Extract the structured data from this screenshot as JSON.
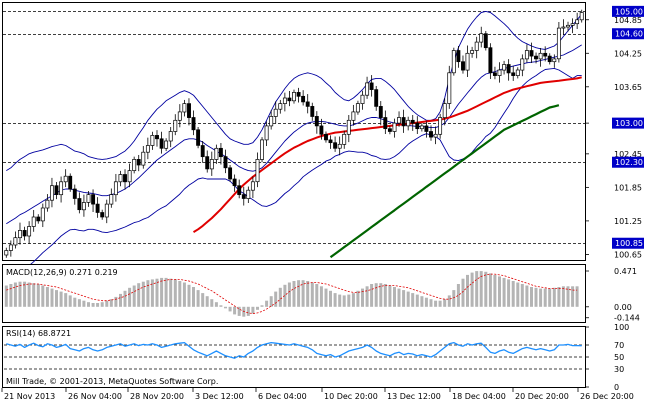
{
  "chart_data": [
    {
      "type": "candlestick",
      "instrument_note": "",
      "y_ticks": [
        "104.85",
        "104.25",
        "103.65",
        "103.00",
        "102.45",
        "101.85",
        "101.25",
        "100.65"
      ],
      "y_tick_values": [
        104.85,
        104.25,
        103.65,
        103.0,
        102.45,
        101.85,
        101.25,
        100.65
      ],
      "ylim": [
        100.55,
        105.15
      ],
      "levels": [
        {
          "label": "105.00",
          "value": 105.0,
          "highlight": true
        },
        {
          "label": "104.60",
          "value": 104.6,
          "highlight": true
        },
        {
          "label": "103.00",
          "value": 103.0,
          "highlight": true
        },
        {
          "label": "102.30",
          "value": 102.3,
          "highlight": true
        },
        {
          "label": "100.85",
          "value": 100.85,
          "highlight": true
        }
      ],
      "x_labels": [
        "21 Nov 2013",
        "26 Nov 04:00",
        "28 Nov 20:00",
        "3 Dec 12:00",
        "6 Dec 04:00",
        "10 Dec 20:00",
        "13 Dec 12:00",
        "18 Dec 04:00",
        "20 Dec 20:00",
        "26 Dec 20:00"
      ],
      "close": [
        100.72,
        100.82,
        100.95,
        101.08,
        100.98,
        101.15,
        101.32,
        101.25,
        101.48,
        101.62,
        101.88,
        101.72,
        101.95,
        102.05,
        101.82,
        101.65,
        101.45,
        101.58,
        101.72,
        101.55,
        101.4,
        101.32,
        101.55,
        101.72,
        101.95,
        102.08,
        101.95,
        102.15,
        102.35,
        102.25,
        102.48,
        102.6,
        102.78,
        102.72,
        102.55,
        102.68,
        102.85,
        103.05,
        103.2,
        103.35,
        103.1,
        102.88,
        102.6,
        102.4,
        102.18,
        102.35,
        102.55,
        102.4,
        102.2,
        102.0,
        101.88,
        101.72,
        101.65,
        101.8,
        101.95,
        102.35,
        102.7,
        102.95,
        103.12,
        103.25,
        103.35,
        103.45,
        103.4,
        103.55,
        103.48,
        103.38,
        103.3,
        103.12,
        102.95,
        102.8,
        102.7,
        102.65,
        102.55,
        102.62,
        102.8,
        103.05,
        103.2,
        103.35,
        103.5,
        103.72,
        103.6,
        103.3,
        103.1,
        102.9,
        102.85,
        103.0,
        103.1,
        102.95,
        103.05,
        103.0,
        102.9,
        102.95,
        102.85,
        102.75,
        102.8,
        103.1,
        103.35,
        103.9,
        104.3,
        104.1,
        103.95,
        104.25,
        104.3,
        104.45,
        104.6,
        104.35,
        103.9,
        103.85,
        103.95,
        104.05,
        103.9,
        103.85,
        103.95,
        104.15,
        104.3,
        104.2,
        104.15,
        104.25,
        104.2,
        104.1,
        104.15,
        104.7,
        104.72,
        104.75,
        104.78,
        104.85,
        104.98
      ],
      "bb_upper": [
        102.15,
        102.2,
        102.28,
        102.35,
        102.4,
        102.45,
        102.48,
        102.5,
        102.52,
        102.55,
        102.58,
        102.6,
        102.62,
        102.6,
        102.55,
        102.5,
        102.48,
        102.45,
        102.4,
        102.38,
        102.36,
        102.35,
        102.36,
        102.38,
        102.4,
        102.45,
        102.5,
        102.58,
        102.68,
        102.8,
        102.92,
        103.05,
        103.15,
        103.25,
        103.32,
        103.4,
        103.45,
        103.5,
        103.55,
        103.58,
        103.55,
        103.5,
        103.4,
        103.3,
        103.2,
        103.1,
        103.0,
        102.9,
        102.8,
        102.72,
        102.68,
        102.65,
        102.62,
        102.62,
        102.65,
        102.75,
        102.88,
        103.05,
        103.22,
        103.38,
        103.5,
        103.62,
        103.72,
        103.8,
        103.85,
        103.88,
        103.9,
        103.88,
        103.85,
        103.8,
        103.72,
        103.65,
        103.55,
        103.48,
        103.42,
        103.4,
        103.45,
        103.52,
        103.6,
        103.7,
        103.78,
        103.8,
        103.8,
        103.75,
        103.68,
        103.6,
        103.5,
        103.4,
        103.3,
        103.22,
        103.15,
        103.1,
        103.05,
        103.05,
        103.08,
        103.2,
        103.45,
        103.8,
        104.1,
        104.35,
        104.52,
        104.68,
        104.8,
        104.9,
        104.98,
        105.0,
        104.98,
        104.92,
        104.85,
        104.78,
        104.7,
        104.6,
        104.52,
        104.46,
        104.42,
        104.38,
        104.35,
        104.33,
        104.32,
        104.35,
        104.38,
        104.45,
        104.55,
        104.65,
        104.75,
        104.85,
        104.95
      ],
      "bb_middle": [
        101.2,
        101.25,
        101.3,
        101.36,
        101.4,
        101.45,
        101.5,
        101.55,
        101.6,
        101.65,
        101.7,
        101.75,
        101.8,
        101.82,
        101.82,
        101.8,
        101.78,
        101.76,
        101.75,
        101.74,
        101.72,
        101.7,
        101.7,
        101.72,
        101.74,
        101.78,
        101.82,
        101.88,
        101.95,
        102.02,
        102.1,
        102.18,
        102.26,
        102.34,
        102.4,
        102.46,
        102.52,
        102.58,
        102.64,
        102.7,
        102.72,
        102.72,
        102.7,
        102.66,
        102.6,
        102.55,
        102.5,
        102.45,
        102.4,
        102.34,
        102.28,
        102.22,
        102.18,
        102.15,
        102.14,
        102.16,
        102.2,
        102.28,
        102.38,
        102.48,
        102.58,
        102.68,
        102.76,
        102.84,
        102.9,
        102.96,
        103.0,
        103.02,
        103.03,
        103.03,
        103.02,
        103.0,
        102.98,
        102.96,
        102.95,
        102.95,
        102.97,
        103.0,
        103.04,
        103.08,
        103.1,
        103.1,
        103.08,
        103.05,
        103.02,
        103.0,
        102.98,
        102.97,
        102.96,
        102.95,
        102.94,
        102.94,
        102.93,
        102.92,
        102.92,
        102.95,
        103.0,
        103.1,
        103.22,
        103.34,
        103.44,
        103.54,
        103.64,
        103.74,
        103.82,
        103.88,
        103.9,
        103.92,
        103.95,
        103.98,
        104.0,
        104.02,
        104.04,
        104.06,
        104.08,
        104.09,
        104.1,
        104.12,
        104.14,
        104.16,
        104.18,
        104.2,
        104.22,
        104.26,
        104.3,
        104.35,
        104.4
      ],
      "bb_lower": [
        100.25,
        100.3,
        100.33,
        100.37,
        100.4,
        100.45,
        100.52,
        100.6,
        100.68,
        100.75,
        100.82,
        100.9,
        100.98,
        101.04,
        101.09,
        101.1,
        101.08,
        101.07,
        101.1,
        101.1,
        101.08,
        101.05,
        101.04,
        101.06,
        101.08,
        101.11,
        101.14,
        101.18,
        101.22,
        101.24,
        101.28,
        101.31,
        101.37,
        101.43,
        101.48,
        101.52,
        101.59,
        101.66,
        101.73,
        101.82,
        101.89,
        101.94,
        102.0,
        102.02,
        102.0,
        102.0,
        102.0,
        102.0,
        102.0,
        101.96,
        101.88,
        101.79,
        101.74,
        101.68,
        101.63,
        101.57,
        101.52,
        101.51,
        101.54,
        101.58,
        101.66,
        101.74,
        101.8,
        101.88,
        101.95,
        102.04,
        102.1,
        102.16,
        102.21,
        102.26,
        102.32,
        102.35,
        102.41,
        102.44,
        102.48,
        102.5,
        102.49,
        102.48,
        102.48,
        102.46,
        102.42,
        102.4,
        102.36,
        102.35,
        102.36,
        102.4,
        102.46,
        102.54,
        102.62,
        102.68,
        102.73,
        102.78,
        102.81,
        102.79,
        102.76,
        102.7,
        102.55,
        102.4,
        102.34,
        102.33,
        102.36,
        102.4,
        102.48,
        102.58,
        102.66,
        102.76,
        102.82,
        102.92,
        103.05,
        103.18,
        103.3,
        103.44,
        103.56,
        103.66,
        103.74,
        103.8,
        103.85,
        103.91,
        103.96,
        103.97,
        103.98,
        103.95,
        103.9,
        103.85,
        103.8,
        103.85,
        103.85
      ],
      "ma_red": [
        null,
        null,
        null,
        null,
        null,
        null,
        null,
        null,
        null,
        null,
        null,
        null,
        null,
        null,
        null,
        null,
        null,
        null,
        null,
        null,
        null,
        null,
        null,
        null,
        null,
        null,
        null,
        null,
        null,
        null,
        null,
        null,
        null,
        null,
        null,
        null,
        null,
        null,
        null,
        null,
        null,
        101.05,
        101.1,
        101.16,
        101.23,
        101.3,
        101.38,
        101.46,
        101.55,
        101.64,
        101.73,
        101.82,
        101.9,
        101.97,
        102.04,
        102.1,
        102.16,
        102.22,
        102.28,
        102.34,
        102.4,
        102.46,
        102.51,
        102.56,
        102.6,
        102.64,
        102.68,
        102.71,
        102.74,
        102.77,
        102.79,
        102.81,
        102.83,
        102.84,
        102.85,
        102.86,
        102.87,
        102.88,
        102.89,
        102.9,
        102.91,
        102.92,
        102.93,
        102.94,
        102.95,
        102.96,
        102.97,
        102.98,
        102.99,
        103.0,
        103.01,
        103.02,
        103.03,
        103.04,
        103.05,
        103.06,
        103.08,
        103.1,
        103.13,
        103.16,
        103.19,
        103.22,
        103.26,
        103.3,
        103.34,
        103.38,
        103.42,
        103.46,
        103.5,
        103.54,
        103.57,
        103.6,
        103.62,
        103.64,
        103.66,
        103.68,
        103.7,
        103.72,
        103.73,
        103.74,
        103.75,
        103.76,
        103.77,
        103.78,
        103.79,
        103.8,
        103.82
      ],
      "ma_green": [
        null,
        null,
        null,
        null,
        null,
        null,
        null,
        null,
        null,
        null,
        null,
        null,
        null,
        null,
        null,
        null,
        null,
        null,
        null,
        null,
        null,
        null,
        null,
        null,
        null,
        null,
        null,
        null,
        null,
        null,
        null,
        null,
        null,
        null,
        null,
        null,
        null,
        null,
        null,
        null,
        null,
        null,
        null,
        null,
        null,
        null,
        null,
        null,
        null,
        null,
        null,
        null,
        null,
        null,
        null,
        null,
        null,
        null,
        null,
        null,
        null,
        null,
        null,
        null,
        null,
        null,
        null,
        null,
        null,
        null,
        null,
        100.6,
        100.66,
        100.72,
        100.78,
        100.84,
        100.9,
        100.96,
        101.02,
        101.08,
        101.14,
        101.2,
        101.26,
        101.32,
        101.38,
        101.44,
        101.5,
        101.56,
        101.62,
        101.68,
        101.74,
        101.8,
        101.86,
        101.92,
        101.98,
        102.04,
        102.1,
        102.16,
        102.22,
        102.28,
        102.34,
        102.4,
        102.46,
        102.52,
        102.58,
        102.64,
        102.7,
        102.76,
        102.82,
        102.88,
        102.92,
        102.96,
        103.0,
        103.04,
        103.08,
        103.12,
        103.16,
        103.2,
        103.24,
        103.28,
        103.3,
        103.32
      ],
      "ma_green_start": 105
    },
    {
      "type": "bar",
      "label": "MACD(12,26,9) 0.271 0.219",
      "y_ticks": [
        "0.471",
        "0.00",
        "-0.144"
      ],
      "y_tick_values": [
        0.471,
        0.0,
        -0.144
      ],
      "ylim": [
        -0.2,
        0.55
      ],
      "macd": [
        0.28,
        0.3,
        0.32,
        0.33,
        0.33,
        0.32,
        0.31,
        0.3,
        0.28,
        0.26,
        0.24,
        0.22,
        0.2,
        0.18,
        0.15,
        0.12,
        0.1,
        0.08,
        0.06,
        0.05,
        0.05,
        0.06,
        0.08,
        0.1,
        0.13,
        0.17,
        0.21,
        0.25,
        0.28,
        0.31,
        0.33,
        0.35,
        0.36,
        0.37,
        0.38,
        0.38,
        0.37,
        0.36,
        0.34,
        0.32,
        0.29,
        0.26,
        0.22,
        0.18,
        0.14,
        0.1,
        0.06,
        0.02,
        -0.02,
        -0.06,
        -0.1,
        -0.12,
        -0.13,
        -0.12,
        -0.09,
        -0.04,
        0.02,
        0.08,
        0.14,
        0.2,
        0.25,
        0.29,
        0.32,
        0.34,
        0.35,
        0.35,
        0.34,
        0.32,
        0.3,
        0.27,
        0.24,
        0.21,
        0.18,
        0.16,
        0.15,
        0.16,
        0.18,
        0.21,
        0.24,
        0.27,
        0.3,
        0.31,
        0.31,
        0.3,
        0.28,
        0.26,
        0.24,
        0.22,
        0.2,
        0.18,
        0.16,
        0.14,
        0.12,
        0.1,
        0.08,
        0.08,
        0.1,
        0.15,
        0.22,
        0.3,
        0.37,
        0.42,
        0.45,
        0.47,
        0.47,
        0.46,
        0.44,
        0.42,
        0.4,
        0.38,
        0.36,
        0.34,
        0.32,
        0.3,
        0.28,
        0.26,
        0.25,
        0.24,
        0.24,
        0.24,
        0.25,
        0.26,
        0.27,
        0.27,
        0.27,
        0.27
      ],
      "signal": [
        0.22,
        0.24,
        0.26,
        0.28,
        0.29,
        0.3,
        0.3,
        0.3,
        0.29,
        0.28,
        0.27,
        0.26,
        0.24,
        0.22,
        0.2,
        0.18,
        0.16,
        0.14,
        0.12,
        0.1,
        0.09,
        0.08,
        0.08,
        0.09,
        0.1,
        0.12,
        0.14,
        0.17,
        0.2,
        0.23,
        0.26,
        0.28,
        0.3,
        0.32,
        0.34,
        0.35,
        0.36,
        0.36,
        0.36,
        0.35,
        0.34,
        0.32,
        0.3,
        0.27,
        0.24,
        0.21,
        0.17,
        0.13,
        0.09,
        0.05,
        0.01,
        -0.03,
        -0.06,
        -0.08,
        -0.09,
        -0.08,
        -0.06,
        -0.03,
        0.01,
        0.05,
        0.1,
        0.15,
        0.2,
        0.24,
        0.27,
        0.3,
        0.31,
        0.32,
        0.32,
        0.31,
        0.3,
        0.28,
        0.26,
        0.24,
        0.22,
        0.2,
        0.19,
        0.19,
        0.2,
        0.21,
        0.23,
        0.25,
        0.27,
        0.28,
        0.28,
        0.28,
        0.27,
        0.26,
        0.25,
        0.23,
        0.21,
        0.19,
        0.17,
        0.15,
        0.13,
        0.11,
        0.1,
        0.1,
        0.12,
        0.15,
        0.2,
        0.26,
        0.31,
        0.36,
        0.4,
        0.42,
        0.43,
        0.43,
        0.42,
        0.41,
        0.39,
        0.37,
        0.35,
        0.33,
        0.31,
        0.29,
        0.27,
        0.26,
        0.25,
        0.24,
        0.24,
        0.24,
        0.24,
        0.23,
        0.22,
        0.22
      ]
    },
    {
      "type": "line",
      "label": "RSI(14) 68.8721",
      "y_ticks": [
        "100",
        "70",
        "50",
        "30",
        "0"
      ],
      "y_tick_values": [
        100,
        70,
        50,
        30,
        0
      ],
      "ylim": [
        0,
        100
      ],
      "levels": [
        70,
        50,
        30
      ],
      "values": [
        72,
        70,
        68,
        71,
        66,
        70,
        73,
        69,
        67,
        72,
        70,
        66,
        68,
        71,
        64,
        62,
        60,
        64,
        66,
        62,
        60,
        62,
        66,
        68,
        70,
        72,
        68,
        70,
        72,
        69,
        71,
        70,
        72,
        70,
        66,
        68,
        70,
        72,
        73,
        74,
        68,
        62,
        58,
        55,
        52,
        56,
        60,
        56,
        52,
        50,
        48,
        52,
        50,
        56,
        60,
        66,
        70,
        72,
        74,
        73,
        72,
        71,
        70,
        72,
        70,
        68,
        66,
        62,
        56,
        54,
        52,
        54,
        50,
        52,
        56,
        60,
        62,
        64,
        66,
        70,
        66,
        60,
        56,
        54,
        52,
        56,
        58,
        54,
        56,
        55,
        52,
        54,
        52,
        50,
        54,
        60,
        66,
        72,
        74,
        70,
        68,
        72,
        70,
        72,
        73,
        66,
        58,
        56,
        60,
        62,
        58,
        56,
        60,
        64,
        66,
        64,
        62,
        64,
        62,
        60,
        62,
        70,
        70,
        71,
        69,
        69,
        68.8721
      ]
    }
  ],
  "watermark": "Mill Trade, © 2001-2013, MetaQuotes Software Corp."
}
